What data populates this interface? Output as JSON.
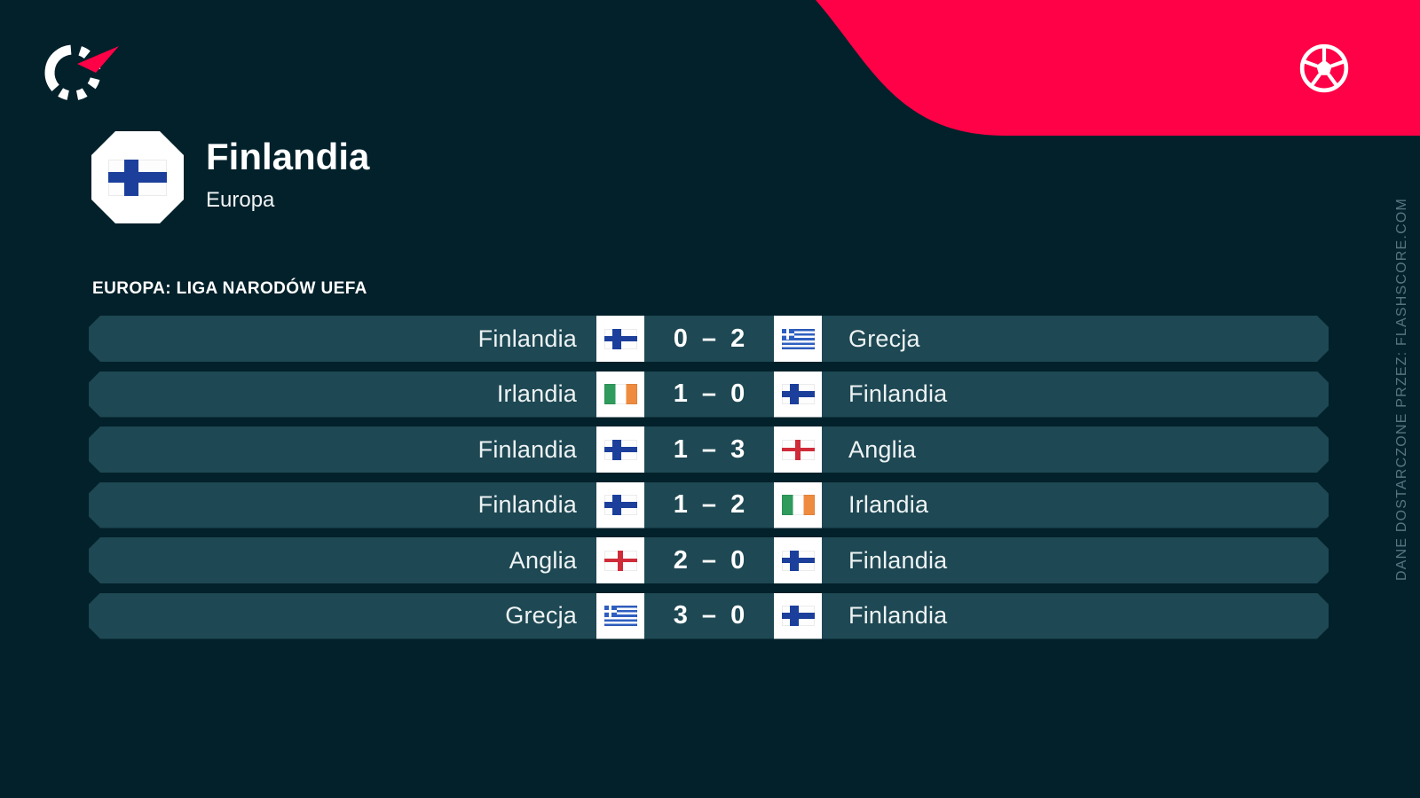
{
  "colors": {
    "background": "#02212b",
    "row_background": "#1e4853",
    "accent_red": "#ff0146",
    "text_primary": "#ffffff",
    "text_muted": "#567581",
    "finland_blue": "#1b3f9b",
    "greece_blue": "#2e5fc0",
    "ireland_green": "#2f9b5c",
    "ireland_orange": "#ef8b3f",
    "england_red": "#cf2b39"
  },
  "brand": {
    "logo_icon": "flashscore-spinner-logo",
    "ball_icon": "football-icon",
    "provider_credit": "DANE DOSTARCZONE PRZEZ: FLASHSCORE.COM"
  },
  "header": {
    "team_name": "Finlandia",
    "region": "Europa",
    "badge_flag": "finland"
  },
  "section": {
    "title": "EUROPA: LIGA NARODÓW UEFA"
  },
  "score_separator": "–",
  "matches": [
    {
      "home_team": "Finlandia",
      "home_flag": "finland",
      "home_score": "0",
      "away_score": "2",
      "away_team": "Grecja",
      "away_flag": "greece"
    },
    {
      "home_team": "Irlandia",
      "home_flag": "ireland",
      "home_score": "1",
      "away_score": "0",
      "away_team": "Finlandia",
      "away_flag": "finland"
    },
    {
      "home_team": "Finlandia",
      "home_flag": "finland",
      "home_score": "1",
      "away_score": "3",
      "away_team": "Anglia",
      "away_flag": "england"
    },
    {
      "home_team": "Finlandia",
      "home_flag": "finland",
      "home_score": "1",
      "away_score": "2",
      "away_team": "Irlandia",
      "away_flag": "ireland"
    },
    {
      "home_team": "Anglia",
      "home_flag": "england",
      "home_score": "2",
      "away_score": "0",
      "away_team": "Finlandia",
      "away_flag": "finland"
    },
    {
      "home_team": "Grecja",
      "home_flag": "greece",
      "home_score": "3",
      "away_score": "0",
      "away_team": "Finlandia",
      "away_flag": "finland"
    }
  ]
}
